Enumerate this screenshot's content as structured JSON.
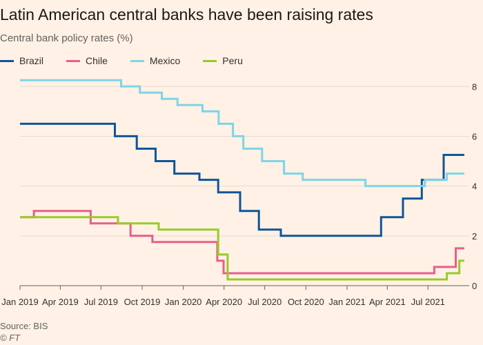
{
  "header": {
    "title": "Latin American central banks have been raising rates",
    "subtitle": "Central bank policy rates (%)"
  },
  "footer": {
    "source": "Source: BIS",
    "credit": "© FT"
  },
  "chart_data": {
    "type": "line",
    "title": "Latin American central banks have been raising rates",
    "subtitle": "Central bank policy rates (%)",
    "x_type": "date",
    "xlim": [
      "2019-01-01",
      "2021-10-01"
    ],
    "ylim": [
      0,
      8.7
    ],
    "y_ticks": [
      0,
      2,
      4,
      6,
      8
    ],
    "y_axis_side": "right",
    "x_tick_labels": [
      {
        "label": "Jan 2019",
        "date": "2019-01-01"
      },
      {
        "label": "Apr 2019",
        "date": "2019-04-01"
      },
      {
        "label": "Jul 2019",
        "date": "2019-07-01"
      },
      {
        "label": "Oct 2019",
        "date": "2019-10-01"
      },
      {
        "label": "Jan 2020",
        "date": "2020-01-01"
      },
      {
        "label": "Apr 2020",
        "date": "2020-04-01"
      },
      {
        "label": "Jul 2020",
        "date": "2020-07-01"
      },
      {
        "label": "Oct 2020",
        "date": "2020-10-01"
      },
      {
        "label": "Jan 2021",
        "date": "2021-01-01"
      },
      {
        "label": "Apr 2021",
        "date": "2021-04-01"
      },
      {
        "label": "Jul 2021",
        "date": "2021-07-01"
      }
    ],
    "grid": "horizontal",
    "legend_position": "top-left",
    "step": true,
    "series": [
      {
        "name": "Brazil",
        "color": "#0f5499",
        "points": [
          [
            "2019-01-01",
            6.5
          ],
          [
            "2019-08-01",
            6.0
          ],
          [
            "2019-09-19",
            5.5
          ],
          [
            "2019-10-31",
            5.0
          ],
          [
            "2019-12-12",
            4.5
          ],
          [
            "2020-02-06",
            4.25
          ],
          [
            "2020-03-19",
            3.75
          ],
          [
            "2020-05-07",
            3.0
          ],
          [
            "2020-06-18",
            2.25
          ],
          [
            "2020-08-06",
            2.0
          ],
          [
            "2021-03-18",
            2.75
          ],
          [
            "2021-05-06",
            3.5
          ],
          [
            "2021-06-17",
            4.25
          ],
          [
            "2021-08-05",
            5.25
          ],
          [
            "2021-09-20",
            5.25
          ]
        ]
      },
      {
        "name": "Chile",
        "color": "#e95d8c",
        "points": [
          [
            "2019-01-01",
            2.75
          ],
          [
            "2019-02-01",
            3.0
          ],
          [
            "2019-06-08",
            2.5
          ],
          [
            "2019-09-05",
            2.0
          ],
          [
            "2019-10-24",
            1.75
          ],
          [
            "2020-03-17",
            1.0
          ],
          [
            "2020-03-31",
            0.5
          ],
          [
            "2021-07-15",
            0.75
          ],
          [
            "2021-09-01",
            1.5
          ],
          [
            "2021-09-20",
            1.5
          ]
        ]
      },
      {
        "name": "Mexico",
        "color": "#7dd5e8",
        "points": [
          [
            "2019-01-01",
            8.25
          ],
          [
            "2019-08-15",
            8.0
          ],
          [
            "2019-09-26",
            7.75
          ],
          [
            "2019-11-14",
            7.5
          ],
          [
            "2019-12-19",
            7.25
          ],
          [
            "2020-02-13",
            7.0
          ],
          [
            "2020-03-20",
            6.5
          ],
          [
            "2020-04-21",
            6.0
          ],
          [
            "2020-05-14",
            5.5
          ],
          [
            "2020-06-25",
            5.0
          ],
          [
            "2020-08-13",
            4.5
          ],
          [
            "2020-09-24",
            4.25
          ],
          [
            "2021-02-11",
            4.0
          ],
          [
            "2021-06-24",
            4.25
          ],
          [
            "2021-08-12",
            4.5
          ],
          [
            "2021-09-20",
            4.5
          ]
        ]
      },
      {
        "name": "Peru",
        "color": "#96cc28",
        "points": [
          [
            "2019-01-01",
            2.75
          ],
          [
            "2019-08-08",
            2.5
          ],
          [
            "2019-11-07",
            2.25
          ],
          [
            "2020-03-19",
            1.25
          ],
          [
            "2020-04-09",
            0.25
          ],
          [
            "2021-08-12",
            0.5
          ],
          [
            "2021-09-09",
            1.0
          ],
          [
            "2021-09-20",
            1.0
          ]
        ]
      }
    ]
  }
}
